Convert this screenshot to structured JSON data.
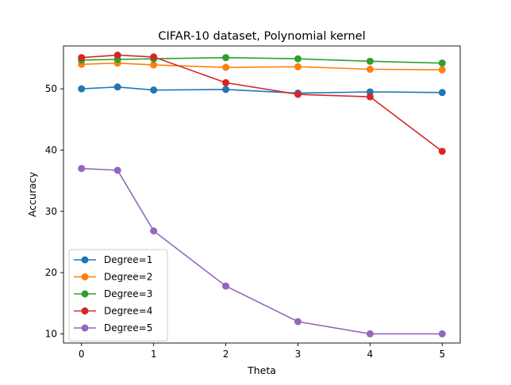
{
  "chart_data": {
    "type": "line",
    "title": "CIFAR-10 dataset, Polynomial kernel",
    "xlabel": "Theta",
    "ylabel": "Accuracy",
    "x": [
      0,
      0.5,
      1,
      2,
      3,
      4,
      5
    ],
    "xlim": [
      -0.25,
      5.25
    ],
    "ylim": [
      8.5,
      57.0
    ],
    "xticks": [
      0,
      1,
      2,
      3,
      4,
      5
    ],
    "yticks": [
      10,
      20,
      30,
      40,
      50
    ],
    "grid": false,
    "legend_position": "lower-left",
    "series": [
      {
        "name": "Degree=1",
        "color": "#1f77b4",
        "values": [
          50.0,
          50.3,
          49.8,
          49.9,
          49.3,
          49.5,
          49.4
        ]
      },
      {
        "name": "Degree=2",
        "color": "#ff7f0e",
        "values": [
          54.0,
          54.2,
          53.9,
          53.5,
          53.6,
          53.2,
          53.1
        ]
      },
      {
        "name": "Degree=3",
        "color": "#2ca02c",
        "values": [
          54.7,
          54.8,
          54.9,
          55.1,
          54.9,
          54.5,
          54.2
        ]
      },
      {
        "name": "Degree=4",
        "color": "#d62728",
        "values": [
          55.1,
          55.5,
          55.2,
          51.0,
          49.1,
          48.7,
          39.8
        ]
      },
      {
        "name": "Degree=5",
        "color": "#9467bd",
        "values": [
          37.0,
          36.7,
          26.8,
          17.8,
          12.0,
          10.0,
          10.0
        ]
      }
    ]
  }
}
